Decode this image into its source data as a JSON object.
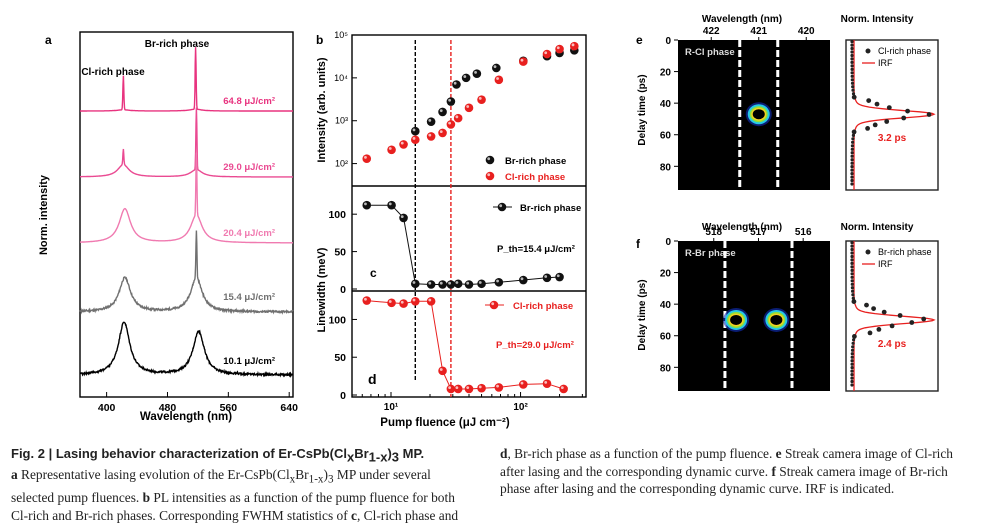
{
  "figure": {
    "number_label": "Fig. 2",
    "title": "Lasing behavior characterization of Er-CsPb(Cl",
    "title_x": "x",
    "title_br": "Br",
    "title_sub": "1-x",
    "title_end": ")",
    "title_3": "3",
    "title_tail": " MP.",
    "caption_left": [
      {
        "bold": "a",
        "text": " Representative lasing evolution of the Er-CsPb(Cl"
      },
      {
        "bold": "",
        "text": "selected pump fluences. "
      },
      {
        "bold": "b",
        "text": " PL intensities as a function of the pump fluence for both"
      },
      {
        "bold": "",
        "text": "Cl-rich and Br-rich phases. Corresponding FWHM statistics of "
      },
      {
        "bold": "c",
        "text": ", Cl-rich phase and"
      }
    ],
    "caption_a_tail": " MP under several",
    "caption_right": [
      {
        "bold": "d",
        "text": ", Br-rich phase as a function of the pump fluence. "
      },
      {
        "bold": "e",
        "text": " Streak camera image of Cl-rich"
      },
      {
        "bold": "",
        "text": "after lasing and the corresponding dynamic curve. "
      },
      {
        "bold": "f",
        "text": " Streak camera image of Br-rich"
      },
      {
        "bold": "",
        "text": "phase after lasing and the corresponding dynamic curve. IRF is indicated."
      }
    ]
  },
  "chart_data": [
    {
      "panel": "a",
      "type": "line",
      "title": "",
      "xlabel": "Wavelength (nm)",
      "ylabel": "Norm. intensity",
      "xlim": [
        365,
        645
      ],
      "xticks": [
        400,
        480,
        560,
        640
      ],
      "annotations": [
        "Cl-rich phase",
        "Br-rich phase"
      ],
      "series": [
        {
          "name": "64.8 μJ/cm²",
          "color": "#e8337f",
          "peaks": [
            {
              "center": 422,
              "width": 1.0,
              "height": 0.55,
              "broad": 0.02
            },
            {
              "center": 517,
              "width": 1.0,
              "height": 1.0,
              "broad": 0.03
            }
          ]
        },
        {
          "name": "29.0 μJ/cm²",
          "color": "#ea4a92",
          "peaks": [
            {
              "center": 422,
              "width": 1.0,
              "height": 0.25,
              "broad": 0.2
            },
            {
              "center": 518,
              "width": 1.0,
              "height": 1.0,
              "broad": 0.12
            }
          ]
        },
        {
          "name": "20.4 μJ/cm²",
          "color": "#f07ab0",
          "peaks": [
            {
              "center": 424,
              "width": 1.0,
              "height": 0.0,
              "broad": 0.55
            },
            {
              "center": 518,
              "width": 1.0,
              "height": 1.0,
              "broad": 0.45
            }
          ]
        },
        {
          "name": "15.4 μJ/cm²",
          "color": "#707070",
          "peaks": [
            {
              "center": 424,
              "width": 1.0,
              "height": 0.0,
              "broad": 0.55
            },
            {
              "center": 518,
              "width": 1.0,
              "height": 0.75,
              "broad": 0.55
            }
          ]
        },
        {
          "name": "10.1  μJ/cm²",
          "color": "#000000",
          "peaks": [
            {
              "center": 423,
              "width": 1.0,
              "height": 0.0,
              "broad": 0.85
            },
            {
              "center": 521,
              "width": 1.0,
              "height": 0.0,
              "broad": 0.7
            }
          ]
        }
      ]
    },
    {
      "panel": "b",
      "type": "scatter",
      "xlabel": "Pump fluence (μJ cm⁻²)",
      "ylabel": "Intensity (arb. units)",
      "xscale": "log",
      "yscale": "log",
      "xlim": [
        5,
        320
      ],
      "ylim": [
        30,
        100000
      ],
      "yticks": [
        "10²",
        "10³",
        "10⁴",
        "10⁵"
      ],
      "ytick_values": [
        100,
        1000,
        10000,
        100000
      ],
      "threshold_lines": [
        {
          "x": 15.4,
          "color": "#000000"
        },
        {
          "x": 29.0,
          "color": "#e8201f"
        }
      ],
      "legend_position": "bottom-right",
      "series": [
        {
          "name": "Br-rich phase",
          "color": "#111111",
          "x": [
            15.4,
            20.4,
            25,
            29,
            32,
            38,
            46,
            65,
            105,
            160,
            200,
            260
          ],
          "y": [
            570,
            950,
            1600,
            2800,
            7000,
            10000,
            12500,
            17000,
            25000,
            32000,
            38000,
            44000
          ]
        },
        {
          "name": "Cl-rich phase",
          "color": "#e8201f",
          "x": [
            6.5,
            10.1,
            12.5,
            15.4,
            20.4,
            25,
            29,
            33,
            40,
            50,
            68,
            105,
            160,
            200,
            260
          ],
          "y": [
            130,
            210,
            280,
            360,
            430,
            520,
            820,
            1150,
            2000,
            3100,
            9000,
            24000,
            36000,
            47000,
            55000
          ]
        }
      ]
    },
    {
      "panel": "c",
      "type": "line",
      "xscale": "log",
      "xlim": [
        5,
        320
      ],
      "ylabel": "Linewidth (meV)",
      "ylim": [
        0,
        135
      ],
      "yticks": [
        0,
        50,
        100
      ],
      "legend_position": "top-right",
      "annotation": "P_th=15.4 μJ/cm²",
      "series": [
        {
          "name": "Br-rich phase",
          "color": "#111111",
          "x": [
            6.5,
            10.1,
            12.5,
            15.4,
            20.4,
            25,
            29,
            33,
            40,
            50,
            68,
            105,
            160,
            200
          ],
          "y": [
            112,
            112,
            95,
            7,
            6,
            6,
            6,
            7,
            6,
            7,
            9,
            12,
            15,
            16
          ]
        }
      ]
    },
    {
      "panel": "d",
      "type": "line",
      "xscale": "log",
      "xlim": [
        5,
        320
      ],
      "xticks": [
        "10¹",
        "10²"
      ],
      "xtick_values": [
        10,
        100
      ],
      "xlabel": "Pump fluence (μJ cm⁻²)",
      "ylim": [
        0,
        135
      ],
      "yticks": [
        0,
        50,
        100
      ],
      "legend_position": "top-right",
      "annotation": "P_th=29.0 μJ/cm²",
      "series": [
        {
          "name": "Cl-rich phase",
          "color": "#e8201f",
          "x": [
            6.5,
            10.1,
            12.5,
            15.4,
            20.4,
            25,
            29,
            33,
            40,
            50,
            68,
            105,
            160,
            215
          ],
          "y": [
            125,
            122,
            121,
            124,
            124,
            32,
            8,
            8,
            8,
            9,
            10,
            14,
            15,
            8
          ]
        }
      ]
    },
    {
      "panel": "e",
      "type": "heatmap",
      "xlabel": "Wavelength (nm)",
      "xticks": [
        422,
        421,
        420
      ],
      "ylabel": "Delay time (ps)",
      "yticks": [
        0,
        20,
        40,
        60,
        80
      ],
      "ylim": [
        0,
        95
      ],
      "label": "R-Cl phase",
      "spots": [
        {
          "wavelength": 421.0,
          "delay": 47
        }
      ],
      "dashed_lines_nm": [
        421.4,
        420.6
      ]
    },
    {
      "panel": "e-curve",
      "type": "line",
      "title": "Norm. Intensity",
      "legend": [
        "Cl-rich phase",
        "IRF"
      ],
      "annotation": "3.2 ps",
      "peak_delay": 47
    },
    {
      "panel": "f",
      "type": "heatmap",
      "xlabel": "Wavelength (nm)",
      "xticks": [
        518,
        517,
        516
      ],
      "ylabel": "Delay time (ps)",
      "yticks": [
        0,
        20,
        40,
        60,
        80
      ],
      "ylim": [
        0,
        95
      ],
      "label": "R-Br phase",
      "spots": [
        {
          "wavelength": 517.5,
          "delay": 50
        },
        {
          "wavelength": 516.6,
          "delay": 50
        }
      ],
      "dashed_lines_nm": [
        517.75,
        516.25
      ]
    },
    {
      "panel": "f-curve",
      "type": "line",
      "title": "Norm. Intensity",
      "legend": [
        "Br-rich phase",
        "IRF"
      ],
      "annotation": "2.4 ps",
      "peak_delay": 50
    }
  ],
  "panel_labels": {
    "a": "a",
    "b": "b",
    "c": "c",
    "d": "d",
    "e": "e",
    "f": "f"
  },
  "colors": {
    "black_series": "#111111",
    "red_series": "#e8201f",
    "pink": "#e8337f"
  }
}
